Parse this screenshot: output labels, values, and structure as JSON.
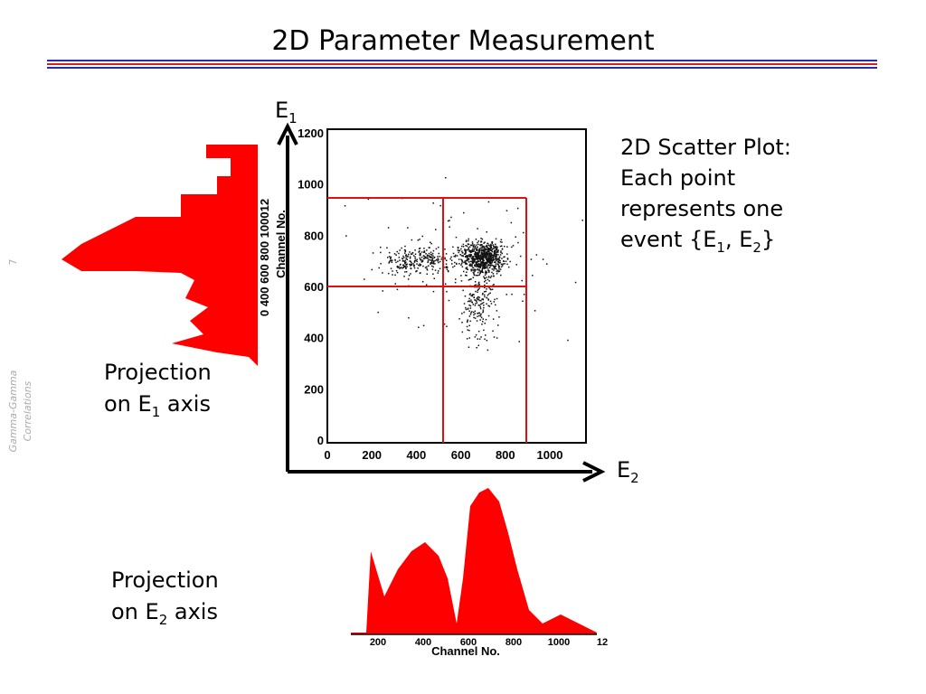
{
  "header": {
    "title": "2D Parameter Measurement"
  },
  "sidebar": {
    "page_number": "7",
    "footer": [
      "Gamma-Gamma",
      "Correlations"
    ]
  },
  "axes": {
    "y_letter": "E",
    "y_sub": "1",
    "x_letter": "E",
    "x_sub": "2"
  },
  "scatter": {
    "y_title": "Channel No.",
    "yticks": [
      0,
      200,
      400,
      600,
      800,
      1000,
      1200
    ],
    "xticks": [
      0,
      200,
      400,
      600,
      800,
      1000
    ]
  },
  "note": {
    "lines": [
      "2D Scatter Plot:",
      "Each point",
      "represents one"
    ],
    "last": [
      "event {E",
      "1",
      ", E",
      "2",
      "}"
    ]
  },
  "proj_e1": {
    "line1": "Projection",
    "line2": [
      "on E",
      "1",
      " axis"
    ],
    "ticks": "0  400  600  800  100012",
    "axis_title": "Channel No."
  },
  "proj_e2": {
    "line1": "Projection",
    "line2": [
      "on E",
      "2",
      " axis"
    ],
    "ticks": [
      "200",
      "400",
      "600",
      "800",
      "1000",
      "12"
    ],
    "axis_title": "Channel No."
  }
}
